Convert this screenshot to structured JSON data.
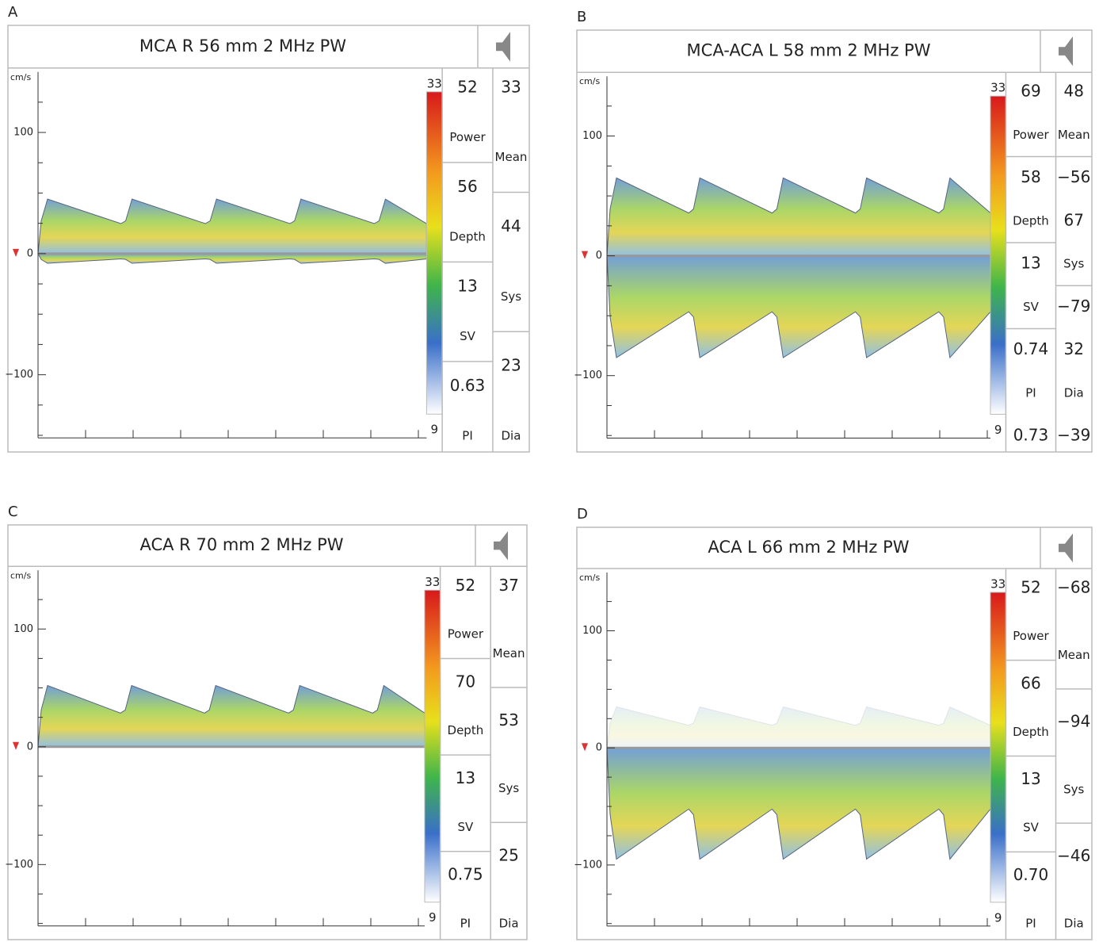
{
  "panels": [
    {
      "label": "A",
      "title": "MCA R 56 mm 2 MHz PW",
      "unit": "cm/s",
      "yticks": [
        "100",
        "0",
        "−100"
      ],
      "scale_top": "33",
      "scale_bottom": "9",
      "left": [
        "52",
        "Power",
        "56",
        "Depth",
        "13",
        "SV",
        "0.63",
        "PI"
      ],
      "right": [
        "33",
        "Mean",
        "44",
        "Sys",
        "23",
        "Dia"
      ]
    },
    {
      "label": "B",
      "title": "MCA-ACA L 58 mm 2 MHz PW",
      "unit": "cm/s",
      "yticks": [
        "100",
        "0",
        "−100"
      ],
      "scale_top": "33",
      "scale_bottom": "9",
      "left": [
        "69",
        "Power",
        "58",
        "Depth",
        "13",
        "SV",
        "0.74",
        "PI",
        "0.73"
      ],
      "right": [
        "48",
        "Mean",
        "−56",
        "67",
        "Sys",
        "−79",
        "32",
        "Dia",
        "−39"
      ]
    },
    {
      "label": "C",
      "title": "ACA R 70 mm 2 MHz PW",
      "unit": "cm/s",
      "yticks": [
        "100",
        "0",
        "−100"
      ],
      "scale_top": "33",
      "scale_bottom": "9",
      "left": [
        "52",
        "Power",
        "70",
        "Depth",
        "13",
        "SV",
        "0.75",
        "PI"
      ],
      "right": [
        "37",
        "Mean",
        "53",
        "Sys",
        "25",
        "Dia"
      ]
    },
    {
      "label": "D",
      "title": "ACA L 66 mm 2 MHz PW",
      "unit": "cm/s",
      "yticks": [
        "100",
        "0",
        "−100"
      ],
      "scale_top": "33",
      "scale_bottom": "9",
      "left": [
        "52",
        "Power",
        "66",
        "Depth",
        "13",
        "SV",
        "0.70",
        "PI"
      ],
      "right": [
        "−68",
        "Mean",
        "−94",
        "Sys",
        "−46",
        "Dia"
      ]
    }
  ]
}
